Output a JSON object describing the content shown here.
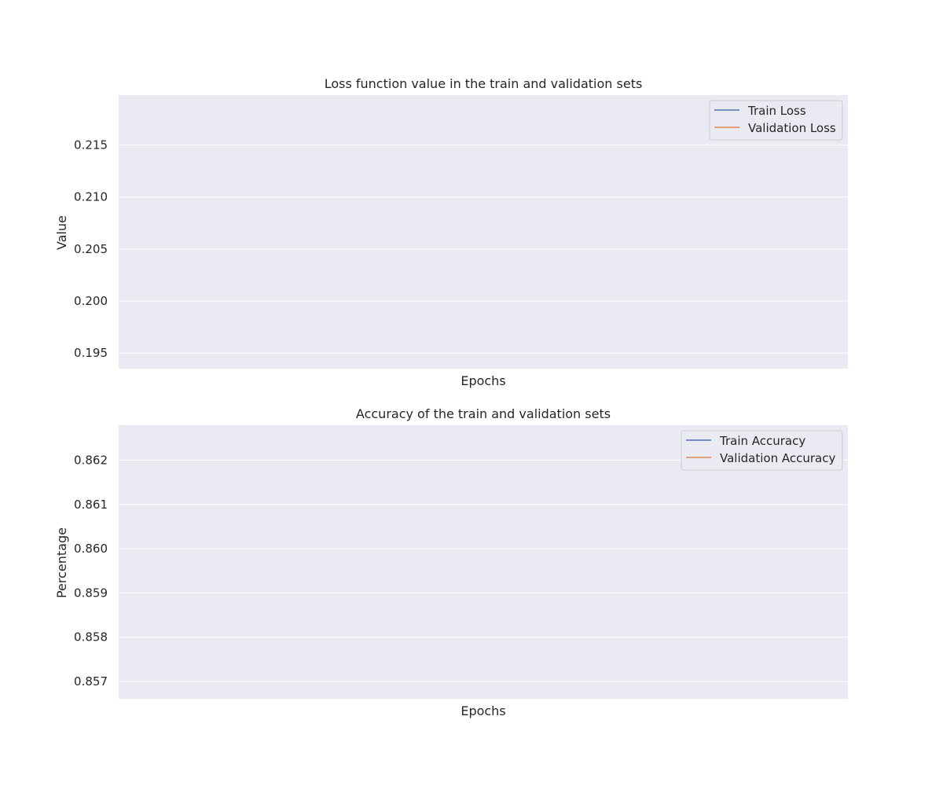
{
  "chart_data": [
    {
      "type": "line",
      "title": "Loss function value in the train and validation sets",
      "xlabel": "Epochs",
      "ylabel": "Value",
      "ylim": [
        0.1935,
        0.2198
      ],
      "y_ticks": [
        0.195,
        0.2,
        0.205,
        0.21,
        0.215
      ],
      "y_tick_labels": [
        "0.195",
        "0.200",
        "0.205",
        "0.210",
        "0.215"
      ],
      "x_ticks": [],
      "grid": true,
      "legend_position": "top-right",
      "series": [
        {
          "name": "Train Loss",
          "color": "#4c72b0",
          "x": [],
          "values": []
        },
        {
          "name": "Validation Loss",
          "color": "#dd8452",
          "x": [],
          "values": []
        }
      ]
    },
    {
      "type": "line",
      "title": "Accuracy of the train and validation sets",
      "xlabel": "Epochs",
      "ylabel": "Percentage",
      "ylim": [
        0.85661,
        0.86279
      ],
      "y_ticks": [
        0.857,
        0.858,
        0.859,
        0.86,
        0.861,
        0.862
      ],
      "y_tick_labels": [
        "0.857",
        "0.858",
        "0.859",
        "0.860",
        "0.861",
        "0.862"
      ],
      "x_ticks": [],
      "grid": true,
      "legend_position": "top-right",
      "series": [
        {
          "name": "Train Accuracy",
          "color": "#4c72b0",
          "x": [],
          "values": []
        },
        {
          "name": "Validation Accuracy",
          "color": "#dd8452",
          "x": [],
          "values": []
        }
      ]
    }
  ]
}
